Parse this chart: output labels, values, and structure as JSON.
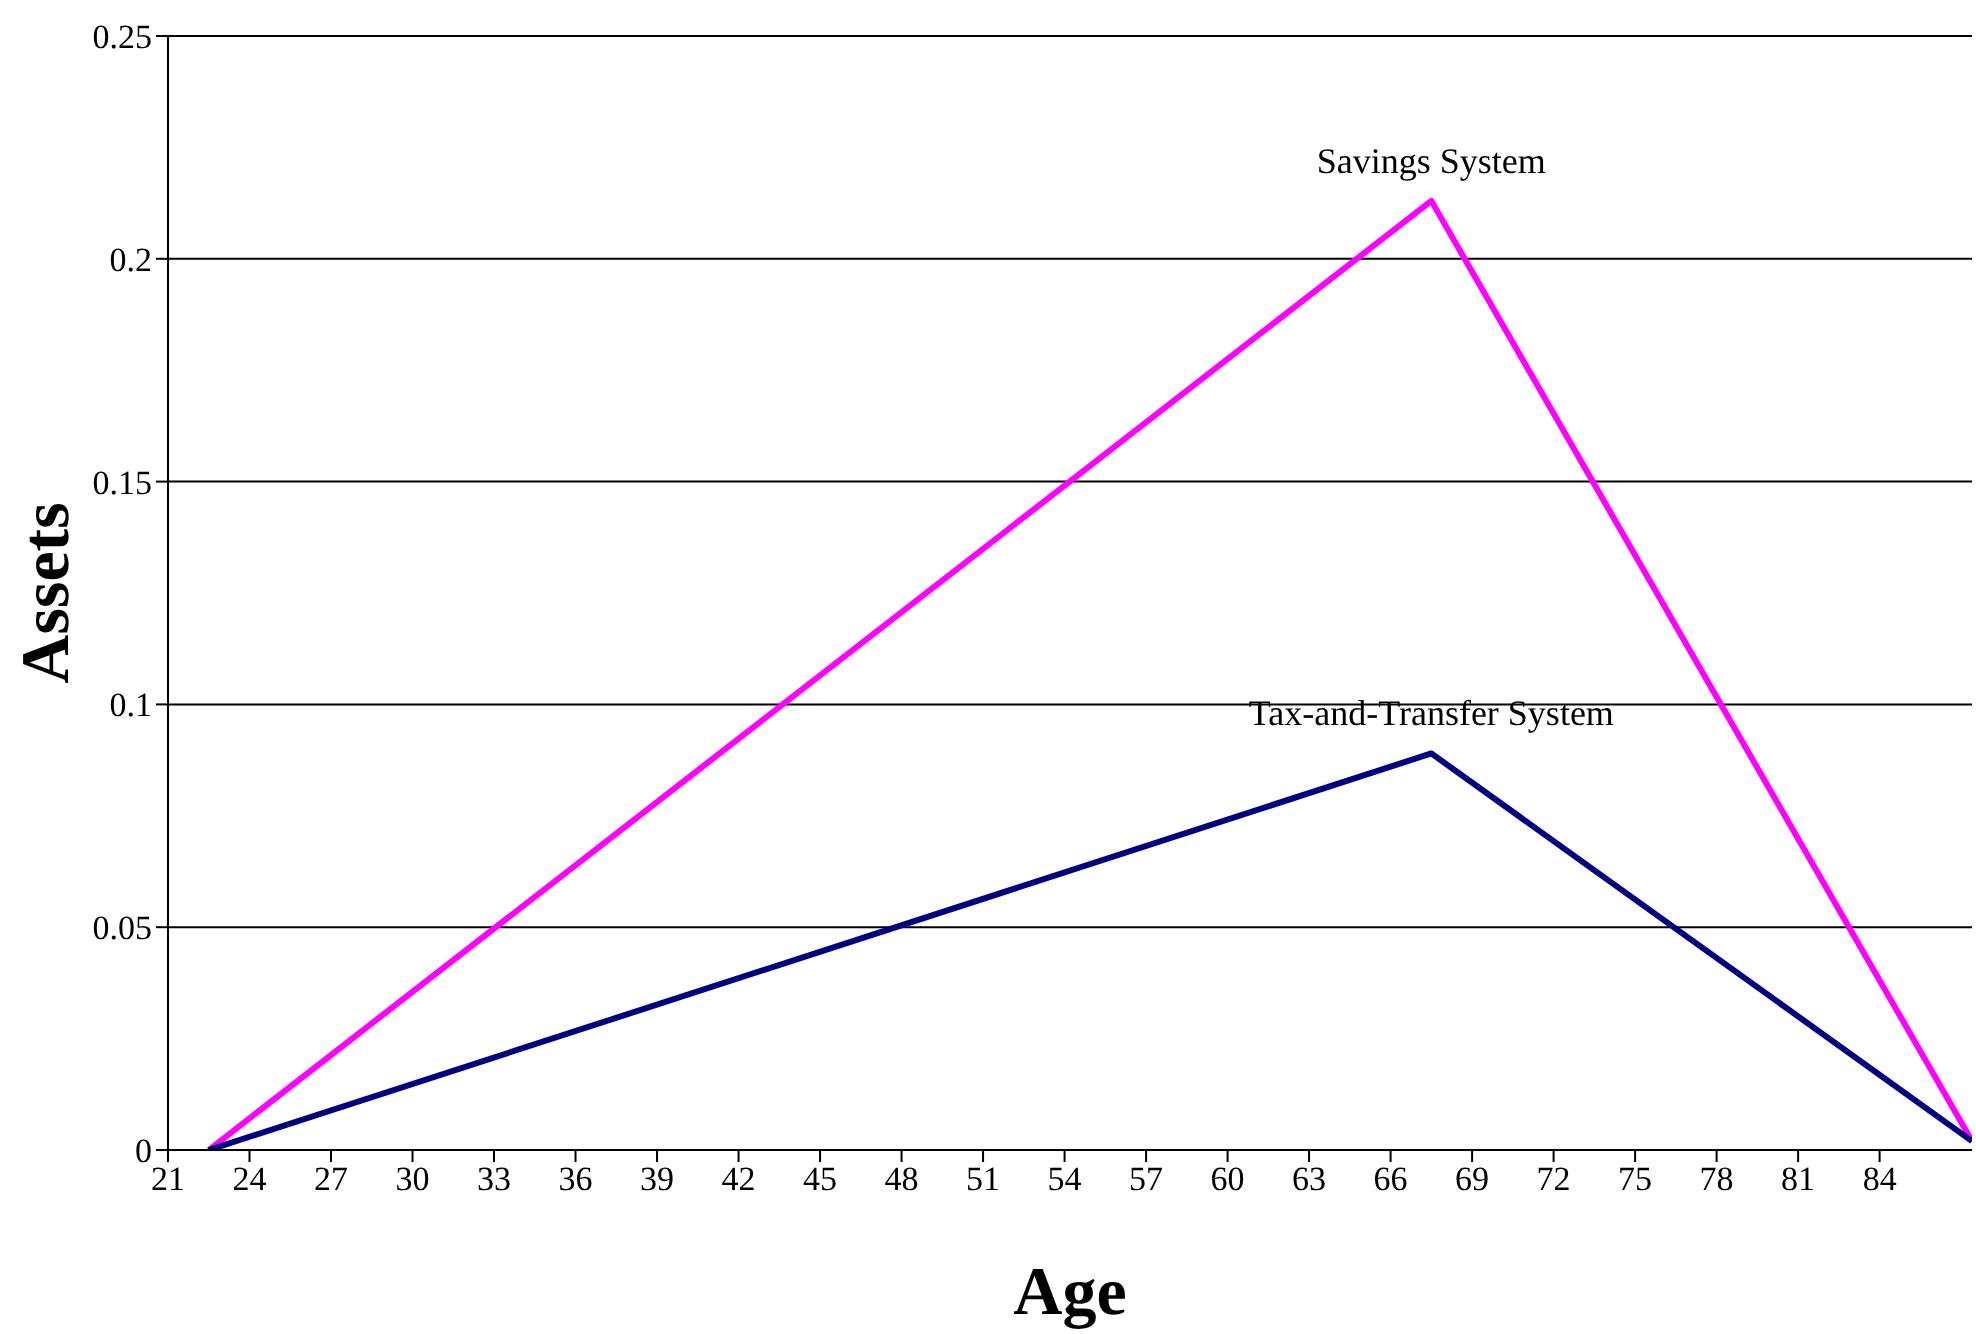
{
  "chart_data": {
    "type": "line",
    "xlabel": "Age",
    "ylabel": "Assets",
    "xlim": [
      21,
      87.4
    ],
    "xticks": [
      21,
      24,
      27,
      30,
      33,
      36,
      39,
      42,
      45,
      48,
      51,
      54,
      57,
      60,
      63,
      66,
      69,
      72,
      75,
      78,
      81,
      84
    ],
    "ylim": [
      0,
      0.25
    ],
    "yticks": [
      0,
      0.05,
      0.1,
      0.15,
      0.2,
      0.25
    ],
    "grid": "y",
    "legend": false,
    "marker": "none",
    "line_style": "solid",
    "series": [
      {
        "name": "Savings System",
        "color": "#ff00ff",
        "x": [
          22.5,
          67.5,
          87.4
        ],
        "values": [
          0,
          0.213,
          0.002
        ]
      },
      {
        "name": "Tax-and-Transfer System",
        "color": "#000080",
        "x": [
          22.5,
          67.5,
          87.4
        ],
        "values": [
          0,
          0.089,
          0.002
        ]
      }
    ]
  }
}
